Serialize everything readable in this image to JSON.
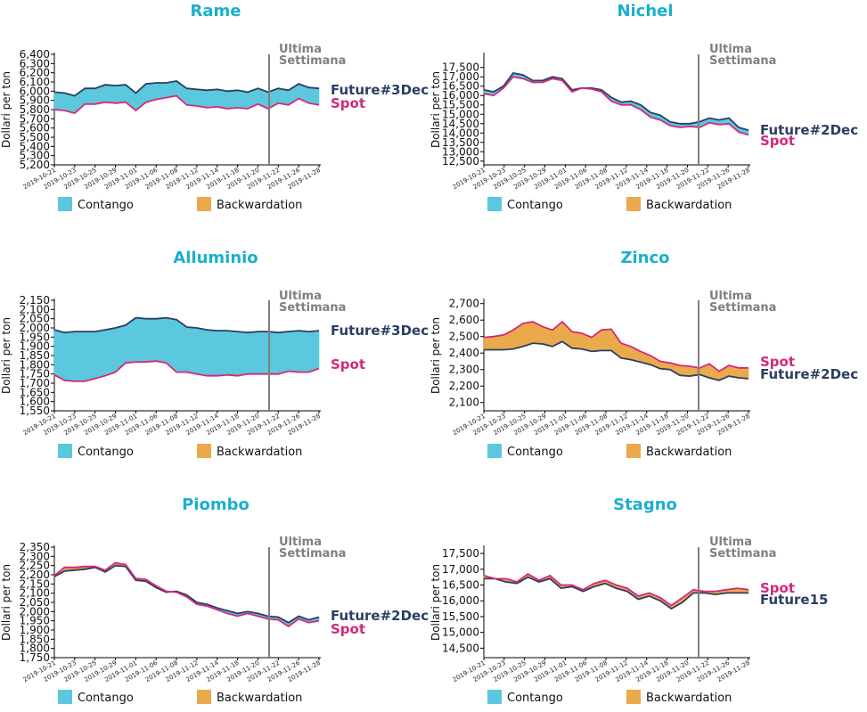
{
  "colors": {
    "title": "#1ab0cc",
    "future": "#2b3e63",
    "spot": "#d6287a",
    "contango": "#5bc8dd",
    "backwardation": "#eaaa4c",
    "marker": "#7f7f7f"
  },
  "labels": {
    "ylabel": "Dollari per ton",
    "annotation_line1": "Ultima",
    "annotation_line2": "Settimana",
    "legend_contango": "Contango",
    "legend_backwardation": "Backwardation"
  },
  "chart_data": [
    {
      "type": "area",
      "title": "Rame",
      "ylabel": "Dollari per ton",
      "ylim": [
        5200,
        6400
      ],
      "yticks": [
        5200,
        5300,
        5400,
        5500,
        5600,
        5700,
        5800,
        5900,
        6000,
        6100,
        6200,
        6300,
        6400
      ],
      "ytick_labels": [
        "5,200",
        "5,300",
        "5,400",
        "5,500",
        "5,600",
        "5,700",
        "5,800",
        "5,900",
        "6,000",
        "6,100",
        "6,200",
        "6,300",
        "6,400"
      ],
      "xlabels": [
        "2019-10-21",
        "2019-10-23",
        "2019-10-25",
        "2019-10-29",
        "2019-11-01",
        "2019-11-06",
        "2019-11-08",
        "2019-11-12",
        "2019-11-14",
        "2019-11-18",
        "2019-11-20",
        "2019-11-22",
        "2019-11-26",
        "2019-11-28"
      ],
      "marker_index": 11.3,
      "series": [
        {
          "name": "Future#3Dec",
          "values": [
            5990,
            5980,
            5950,
            6030,
            6030,
            6070,
            6060,
            6070,
            5980,
            6080,
            6090,
            6090,
            6110,
            6030,
            6020,
            6010,
            6020,
            6000,
            6010,
            5990,
            6030,
            5990,
            6030,
            6010,
            6080,
            6040,
            6030
          ]
        },
        {
          "name": "Spot",
          "values": [
            5800,
            5790,
            5760,
            5860,
            5860,
            5880,
            5870,
            5880,
            5790,
            5880,
            5910,
            5930,
            5950,
            5850,
            5840,
            5820,
            5830,
            5810,
            5820,
            5810,
            5860,
            5810,
            5870,
            5850,
            5920,
            5870,
            5850
          ]
        }
      ],
      "end_labels": [
        "Future#3Dec",
        "Spot"
      ]
    },
    {
      "type": "area",
      "title": "Nichel",
      "ylabel": "Dollari per ton",
      "ylim": [
        12300,
        18200
      ],
      "yticks": [
        12500,
        13000,
        13500,
        14000,
        14500,
        15000,
        15500,
        16000,
        16500,
        17000,
        17500
      ],
      "ytick_labels": [
        "12,500",
        "13,000",
        "13,500",
        "14,000",
        "14,500",
        "15,000",
        "15,500",
        "16,000",
        "16,500",
        "17,000",
        "17,500"
      ],
      "xlabels": [
        "2019-10-21",
        "2019-10-23",
        "2019-10-25",
        "2019-10-29",
        "2019-11-01",
        "2019-11-06",
        "2019-11-08",
        "2019-11-12",
        "2019-11-14",
        "2019-11-18",
        "2019-11-20",
        "2019-11-22",
        "2019-11-26",
        "2019-11-28"
      ],
      "marker_index": 11.3,
      "series": [
        {
          "name": "Future#2Dec",
          "values": [
            16300,
            16200,
            16500,
            17200,
            17100,
            16800,
            16800,
            17000,
            16900,
            16300,
            16400,
            16400,
            16300,
            15900,
            15650,
            15700,
            15500,
            15100,
            14950,
            14600,
            14500,
            14500,
            14600,
            14800,
            14700,
            14800,
            14300,
            14150
          ]
        },
        {
          "name": "Spot",
          "values": [
            16100,
            16000,
            16400,
            17000,
            16900,
            16700,
            16700,
            16900,
            16800,
            16200,
            16400,
            16350,
            16200,
            15700,
            15500,
            15500,
            15250,
            14850,
            14700,
            14400,
            14300,
            14350,
            14300,
            14550,
            14450,
            14500,
            14050,
            13900
          ]
        }
      ],
      "end_labels": [
        "Future#2Dec",
        "Spot"
      ]
    },
    {
      "type": "area",
      "title": "Alluminio",
      "ylabel": "Dollari per ton",
      "ylim": [
        1550,
        2150
      ],
      "yticks": [
        1550,
        1600,
        1650,
        1700,
        1750,
        1800,
        1850,
        1900,
        1950,
        2000,
        2050,
        2100,
        2150
      ],
      "ytick_labels": [
        "1,550",
        "1,600",
        "1,650",
        "1,700",
        "1,750",
        "1,800",
        "1,850",
        "1,900",
        "1,950",
        "2,000",
        "2,050",
        "2,100",
        "2,150"
      ],
      "xlabels": [
        "2019-10-21",
        "2019-10-23",
        "2019-10-25",
        "2019-10-29",
        "2019-11-01",
        "2019-11-06",
        "2019-11-08",
        "2019-11-12",
        "2019-11-14",
        "2019-11-18",
        "2019-11-20",
        "2019-11-22",
        "2019-11-26",
        "2019-11-28"
      ],
      "marker_index": 11.3,
      "series": [
        {
          "name": "Future#3Dec",
          "values": [
            1990,
            1975,
            1980,
            1980,
            1980,
            1990,
            2000,
            2015,
            2055,
            2050,
            2050,
            2055,
            2045,
            2005,
            2000,
            1990,
            1985,
            1985,
            1980,
            1975,
            1980,
            1980,
            1975,
            1980,
            1985,
            1980,
            1985
          ]
        },
        {
          "name": "Spot",
          "values": [
            1745,
            1715,
            1710,
            1710,
            1725,
            1740,
            1760,
            1810,
            1815,
            1815,
            1820,
            1810,
            1760,
            1760,
            1750,
            1740,
            1740,
            1745,
            1740,
            1750,
            1750,
            1750,
            1750,
            1765,
            1760,
            1760,
            1780
          ]
        }
      ],
      "end_labels": [
        "Future#3Dec",
        "Spot"
      ]
    },
    {
      "type": "area",
      "title": "Zinco",
      "ylabel": "Dollari per ton",
      "ylim": [
        2050,
        2720
      ],
      "yticks": [
        2100,
        2200,
        2300,
        2400,
        2500,
        2600,
        2700
      ],
      "ytick_labels": [
        "2,100",
        "2,200",
        "2,300",
        "2,400",
        "2,500",
        "2,600",
        "2,700"
      ],
      "xlabels": [
        "2019-10-21",
        "2019-10-23",
        "2019-10-25",
        "2019-10-29",
        "2019-11-01",
        "2019-11-06",
        "2019-11-08",
        "2019-11-12",
        "2019-11-14",
        "2019-11-18",
        "2019-11-20",
        "2019-11-22",
        "2019-11-26",
        "2019-11-28"
      ],
      "marker_index": 11.3,
      "series": [
        {
          "name": "Spot",
          "values": [
            2495,
            2500,
            2510,
            2540,
            2580,
            2590,
            2560,
            2540,
            2590,
            2530,
            2520,
            2495,
            2540,
            2545,
            2460,
            2440,
            2410,
            2385,
            2350,
            2340,
            2325,
            2320,
            2310,
            2335,
            2290,
            2325,
            2310,
            2310
          ]
        },
        {
          "name": "Future#2Dec",
          "values": [
            2420,
            2420,
            2420,
            2425,
            2440,
            2460,
            2455,
            2440,
            2470,
            2430,
            2425,
            2410,
            2415,
            2415,
            2370,
            2360,
            2345,
            2330,
            2305,
            2300,
            2265,
            2260,
            2270,
            2250,
            2235,
            2260,
            2250,
            2245
          ]
        }
      ],
      "end_labels": [
        "Spot",
        "Future#2Dec"
      ]
    },
    {
      "type": "area",
      "title": "Piombo",
      "ylabel": "Dollari per ton",
      "ylim": [
        1750,
        2350
      ],
      "yticks": [
        1750,
        1800,
        1850,
        1900,
        1950,
        2000,
        2050,
        2100,
        2150,
        2200,
        2250,
        2300,
        2350
      ],
      "ytick_labels": [
        "1,750",
        "1,800",
        "1,850",
        "1,900",
        "1,950",
        "2,000",
        "2,050",
        "2,100",
        "2,150",
        "2,200",
        "2,250",
        "2,300",
        "2,350"
      ],
      "xlabels": [
        "2019-10-21",
        "2019-10-23",
        "2019-10-25",
        "2019-10-29",
        "2019-11-01",
        "2019-11-06",
        "2019-11-08",
        "2019-11-12",
        "2019-11-14",
        "2019-11-18",
        "2019-11-20",
        "2019-11-22",
        "2019-11-26",
        "2019-11-28"
      ],
      "marker_index": 11.3,
      "series": [
        {
          "name": "Future#2Dec",
          "values": [
            2190,
            2220,
            2225,
            2230,
            2240,
            2215,
            2250,
            2245,
            2170,
            2165,
            2130,
            2105,
            2110,
            2090,
            2050,
            2040,
            2020,
            2005,
            1990,
            2000,
            1990,
            1975,
            1970,
            1940,
            1975,
            1955,
            1970
          ]
        },
        {
          "name": "Spot",
          "values": [
            2195,
            2240,
            2240,
            2245,
            2245,
            2225,
            2265,
            2255,
            2180,
            2175,
            2140,
            2110,
            2105,
            2080,
            2040,
            2030,
            2010,
            1990,
            1975,
            1990,
            1975,
            1960,
            1955,
            1920,
            1960,
            1940,
            1950
          ]
        }
      ],
      "end_labels": [
        "Future#2Dec",
        "Spot"
      ]
    },
    {
      "type": "area",
      "title": "Stagno",
      "ylabel": "Dollari per ton",
      "ylim": [
        14200,
        17700
      ],
      "yticks": [
        14500,
        15000,
        15500,
        16000,
        16500,
        17000,
        17500
      ],
      "ytick_labels": [
        "14,500",
        "15,000",
        "15,500",
        "16,000",
        "16,500",
        "17,000",
        "17,500"
      ],
      "xlabels": [
        "2019-10-21",
        "2019-10-23",
        "2019-10-25",
        "2019-10-29",
        "2019-11-01",
        "2019-11-06",
        "2019-11-08",
        "2019-11-12",
        "2019-11-14",
        "2019-11-18",
        "2019-11-20",
        "2019-11-22",
        "2019-11-26",
        "2019-11-28"
      ],
      "marker_index": 11.3,
      "series": [
        {
          "name": "Spot",
          "values": [
            16800,
            16700,
            16700,
            16600,
            16850,
            16650,
            16800,
            16500,
            16500,
            16350,
            16550,
            16650,
            16500,
            16400,
            16150,
            16250,
            16100,
            15850,
            16100,
            16350,
            16300,
            16300,
            16350,
            16400,
            16350
          ]
        },
        {
          "name": "Future15",
          "values": [
            16700,
            16700,
            16600,
            16550,
            16750,
            16600,
            16700,
            16400,
            16450,
            16300,
            16450,
            16550,
            16400,
            16300,
            16050,
            16150,
            16000,
            15750,
            15950,
            16250,
            16250,
            16200,
            16250,
            16250,
            16250
          ]
        }
      ],
      "end_labels": [
        "Spot",
        "Future15"
      ]
    }
  ]
}
